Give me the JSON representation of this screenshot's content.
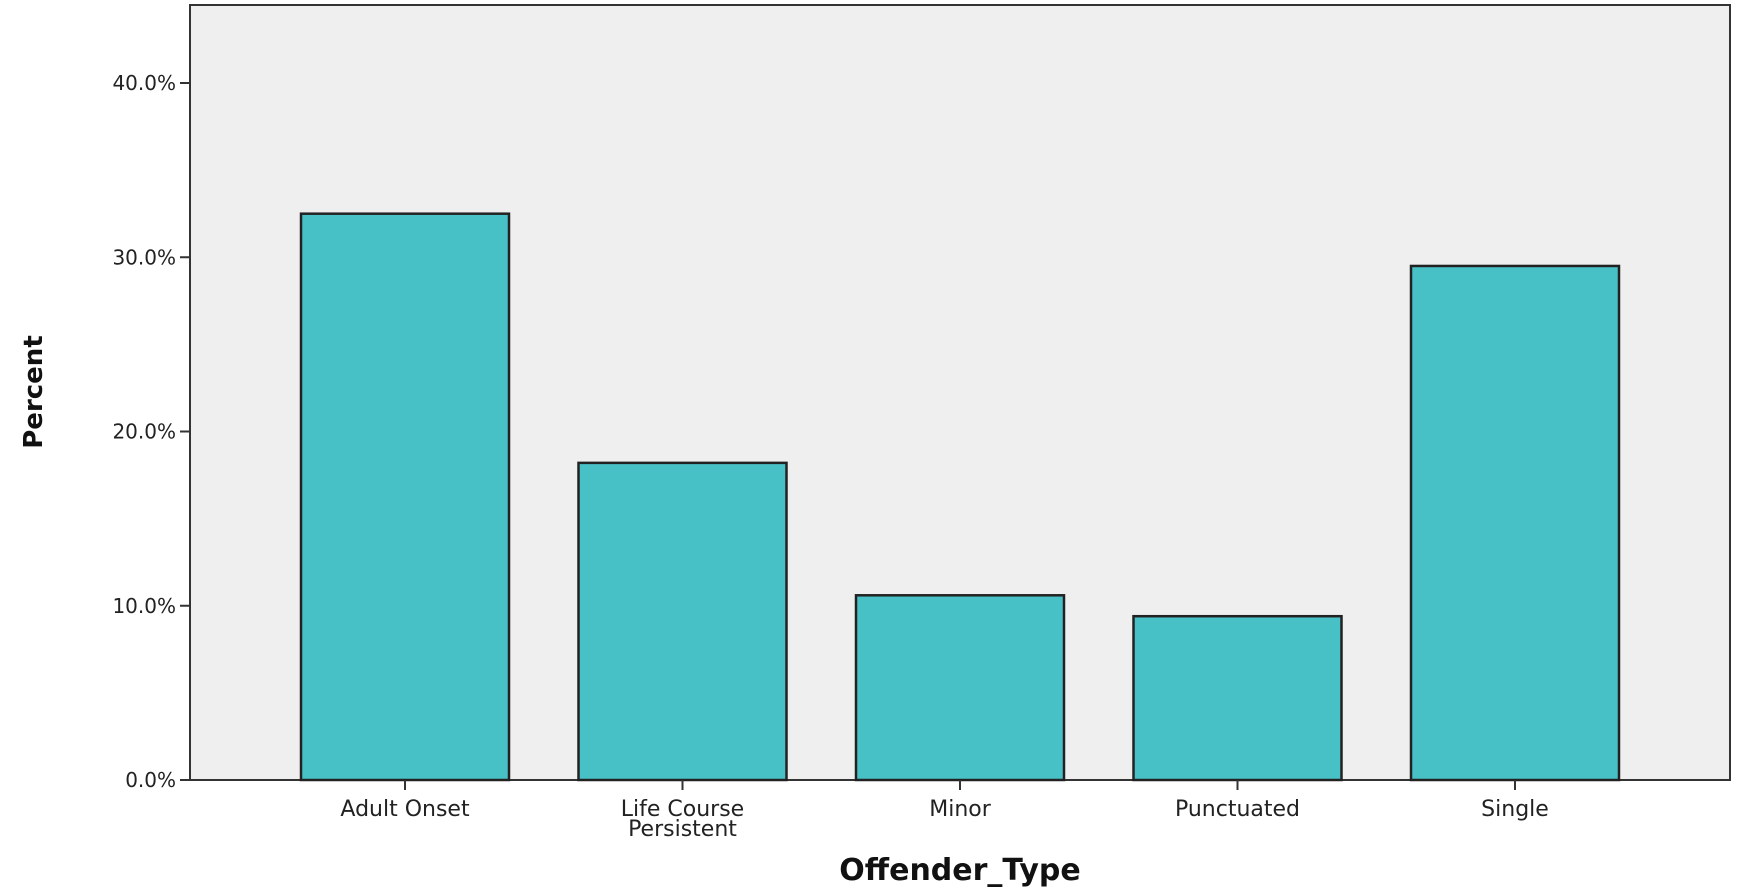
{
  "chart_data": {
    "type": "bar",
    "categories": [
      [
        "Adult Onset"
      ],
      [
        "Life Course",
        "Persistent"
      ],
      [
        "Minor"
      ],
      [
        "Punctuated"
      ],
      [
        "Single"
      ]
    ],
    "values": [
      32.5,
      18.2,
      10.6,
      9.4,
      29.5
    ],
    "xlabel": "Offender_Type",
    "ylabel": "Percent",
    "ylim": [
      0,
      40
    ],
    "yticks": [
      {
        "value": 0,
        "label": "0.0%"
      },
      {
        "value": 10,
        "label": "10.0%"
      },
      {
        "value": 20,
        "label": "20.0%"
      },
      {
        "value": 30,
        "label": "30.0%"
      },
      {
        "value": 40,
        "label": "40.0%"
      }
    ],
    "bar_color": "#48c1c6",
    "plot_background": "#efefef",
    "grid": false,
    "legend": "none"
  }
}
